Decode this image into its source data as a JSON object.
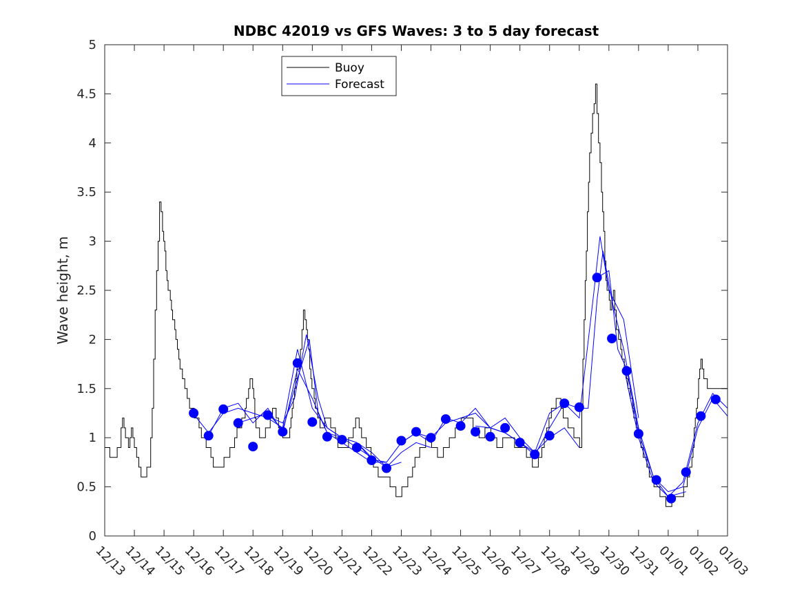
{
  "chart_data": {
    "type": "line",
    "title": "NDBC 42019 vs GFS Waves: 3 to 5 day forecast",
    "xlabel": "",
    "ylabel": "Wave height, m",
    "xlim": [
      0,
      21
    ],
    "ylim": [
      0,
      5
    ],
    "x_unit": "days since 12/13",
    "xtick_labels": [
      "12/13",
      "12/14",
      "12/15",
      "12/16",
      "12/17",
      "12/18",
      "12/19",
      "12/20",
      "12/21",
      "12/22",
      "12/23",
      "12/24",
      "12/25",
      "12/26",
      "12/27",
      "12/28",
      "12/29",
      "12/30",
      "12/31",
      "01/01",
      "01/02",
      "01/03"
    ],
    "yticks": [
      0,
      0.5,
      1,
      1.5,
      2,
      2.5,
      3,
      3.5,
      4,
      4.5,
      5
    ],
    "ytick_labels": [
      "0",
      "0.5",
      "1",
      "1.5",
      "2",
      "2.5",
      "3",
      "3.5",
      "4",
      "4.5",
      "5"
    ],
    "legend": {
      "position": "top-left",
      "entries": [
        "Buoy",
        "Forecast"
      ]
    },
    "colors": {
      "buoy": "#000000",
      "forecast": "#0000ff",
      "axis": "#262626"
    },
    "series": [
      {
        "name": "Buoy",
        "color": "#000000",
        "points": [
          [
            0,
            0.9
          ],
          [
            0.3,
            0.8
          ],
          [
            0.5,
            0.9
          ],
          [
            0.6,
            1.2
          ],
          [
            0.7,
            1.0
          ],
          [
            0.8,
            0.9
          ],
          [
            0.9,
            1.1
          ],
          [
            1.0,
            0.9
          ],
          [
            1.15,
            0.7
          ],
          [
            1.3,
            0.6
          ],
          [
            1.5,
            0.7
          ],
          [
            1.6,
            1.3
          ],
          [
            1.7,
            2.3
          ],
          [
            1.8,
            3.0
          ],
          [
            1.85,
            3.4
          ],
          [
            1.95,
            3.1
          ],
          [
            2.1,
            2.6
          ],
          [
            2.25,
            2.3
          ],
          [
            2.4,
            2.0
          ],
          [
            2.5,
            1.8
          ],
          [
            2.7,
            1.5
          ],
          [
            2.9,
            1.3
          ],
          [
            3.1,
            1.2
          ],
          [
            3.3,
            1.0
          ],
          [
            3.5,
            0.9
          ],
          [
            3.7,
            0.7
          ],
          [
            3.9,
            0.7
          ],
          [
            4.1,
            0.8
          ],
          [
            4.3,
            0.9
          ],
          [
            4.5,
            1.1
          ],
          [
            4.7,
            1.2
          ],
          [
            4.85,
            1.5
          ],
          [
            4.95,
            1.6
          ],
          [
            5.1,
            1.1
          ],
          [
            5.3,
            1.0
          ],
          [
            5.5,
            1.1
          ],
          [
            5.7,
            1.3
          ],
          [
            5.9,
            1.1
          ],
          [
            6.0,
            1.0
          ],
          [
            6.2,
            1.0
          ],
          [
            6.4,
            1.5
          ],
          [
            6.6,
            1.9
          ],
          [
            6.7,
            2.3
          ],
          [
            6.8,
            2.1
          ],
          [
            6.95,
            1.6
          ],
          [
            7.1,
            1.3
          ],
          [
            7.3,
            1.1
          ],
          [
            7.5,
            1.2
          ],
          [
            7.7,
            1.1
          ],
          [
            7.9,
            0.9
          ],
          [
            8.1,
            0.9
          ],
          [
            8.3,
            1.0
          ],
          [
            8.5,
            1.2
          ],
          [
            8.7,
            1.0
          ],
          [
            8.9,
            0.9
          ],
          [
            9.1,
            0.7
          ],
          [
            9.3,
            0.6
          ],
          [
            9.5,
            0.6
          ],
          [
            9.7,
            0.5
          ],
          [
            9.9,
            0.4
          ],
          [
            10.1,
            0.5
          ],
          [
            10.3,
            0.6
          ],
          [
            10.5,
            0.8
          ],
          [
            10.7,
            0.9
          ],
          [
            10.9,
            1.0
          ],
          [
            11.1,
            0.9
          ],
          [
            11.3,
            0.8
          ],
          [
            11.5,
            0.9
          ],
          [
            11.7,
            1.0
          ],
          [
            11.9,
            1.1
          ],
          [
            12.1,
            1.2
          ],
          [
            12.3,
            1.2
          ],
          [
            12.5,
            1.1
          ],
          [
            12.7,
            1.0
          ],
          [
            12.9,
            1.1
          ],
          [
            13.1,
            1.0
          ],
          [
            13.3,
            0.9
          ],
          [
            13.5,
            1.0
          ],
          [
            13.7,
            1.0
          ],
          [
            13.9,
            0.9
          ],
          [
            14.1,
            0.9
          ],
          [
            14.3,
            0.8
          ],
          [
            14.5,
            0.7
          ],
          [
            14.7,
            0.8
          ],
          [
            14.9,
            1.1
          ],
          [
            15.1,
            1.3
          ],
          [
            15.3,
            1.4
          ],
          [
            15.5,
            1.2
          ],
          [
            15.7,
            1.1
          ],
          [
            15.9,
            1.0
          ],
          [
            16.05,
            0.9
          ],
          [
            16.2,
            2.6
          ],
          [
            16.35,
            3.9
          ],
          [
            16.45,
            4.3
          ],
          [
            16.55,
            4.6
          ],
          [
            16.65,
            4.0
          ],
          [
            16.75,
            3.5
          ],
          [
            16.9,
            2.6
          ],
          [
            17.05,
            2.3
          ],
          [
            17.15,
            2.5
          ],
          [
            17.25,
            2.1
          ],
          [
            17.4,
            1.9
          ],
          [
            17.6,
            1.6
          ],
          [
            17.8,
            1.3
          ],
          [
            18.0,
            1.0
          ],
          [
            18.2,
            0.8
          ],
          [
            18.4,
            0.6
          ],
          [
            18.6,
            0.5
          ],
          [
            18.8,
            0.4
          ],
          [
            19.0,
            0.3
          ],
          [
            19.2,
            0.4
          ],
          [
            19.4,
            0.4
          ],
          [
            19.6,
            0.5
          ],
          [
            19.8,
            0.8
          ],
          [
            19.95,
            1.3
          ],
          [
            20.1,
            1.8
          ],
          [
            20.2,
            1.6
          ],
          [
            20.4,
            1.5
          ],
          [
            20.6,
            1.5
          ],
          [
            21.0,
            1.5
          ]
        ]
      },
      {
        "name": "Forecast",
        "color": "#0000ff",
        "runs": [
          [
            [
              3.0,
              1.24
            ],
            [
              3.5,
              1.05
            ],
            [
              4.0,
              1.25
            ],
            [
              4.5,
              1.3
            ],
            [
              5.0,
              1.25
            ],
            [
              5.5,
              1.2
            ],
            [
              6.0,
              1.1
            ],
            [
              6.5,
              1.9
            ],
            [
              7.0,
              1.3
            ],
            [
              7.5,
              1.1
            ],
            [
              8.0,
              1.0
            ],
            [
              8.5,
              0.9
            ],
            [
              9.0,
              0.8
            ]
          ],
          [
            [
              3.5,
              1.02
            ],
            [
              4.0,
              1.3
            ],
            [
              4.5,
              1.35
            ],
            [
              5.0,
              1.15
            ],
            [
              5.5,
              1.3
            ],
            [
              6.0,
              1.05
            ],
            [
              6.5,
              1.7
            ],
            [
              7.0,
              1.4
            ],
            [
              7.5,
              1.05
            ],
            [
              8.0,
              0.95
            ],
            [
              8.5,
              0.85
            ],
            [
              9.0,
              0.75
            ],
            [
              9.5,
              0.75
            ]
          ],
          [
            [
              4.5,
              1.15
            ],
            [
              5.0,
              1.2
            ],
            [
              5.5,
              1.25
            ],
            [
              6.0,
              1.08
            ],
            [
              6.5,
              1.6
            ],
            [
              6.9,
              2.0
            ],
            [
              7.2,
              1.25
            ],
            [
              7.5,
              1.05
            ],
            [
              8.0,
              1.0
            ],
            [
              8.5,
              0.95
            ],
            [
              9.0,
              0.8
            ],
            [
              9.5,
              0.7
            ],
            [
              10.0,
              0.75
            ]
          ],
          [
            [
              5.5,
              1.22
            ],
            [
              6.0,
              1.15
            ],
            [
              6.4,
              1.4
            ],
            [
              6.8,
              2.05
            ],
            [
              7.2,
              1.4
            ],
            [
              7.5,
              1.1
            ],
            [
              8.0,
              1.0
            ],
            [
              8.5,
              0.95
            ],
            [
              9.0,
              0.85
            ],
            [
              9.5,
              0.7
            ],
            [
              10.0,
              0.85
            ],
            [
              10.5,
              0.95
            ],
            [
              11.0,
              0.9
            ]
          ],
          [
            [
              8.5,
              0.95
            ],
            [
              9.0,
              0.78
            ],
            [
              9.5,
              0.75
            ],
            [
              10.0,
              0.95
            ],
            [
              10.5,
              1.05
            ],
            [
              11.0,
              1.0
            ],
            [
              11.5,
              1.15
            ],
            [
              12.0,
              1.2
            ],
            [
              12.5,
              1.25
            ],
            [
              13.0,
              1.1
            ],
            [
              13.5,
              1.05
            ],
            [
              14.0,
              0.95
            ],
            [
              14.4,
              0.85
            ]
          ],
          [
            [
              10.0,
              0.95
            ],
            [
              10.5,
              1.05
            ],
            [
              11.0,
              0.95
            ],
            [
              11.5,
              1.2
            ],
            [
              12.0,
              1.15
            ],
            [
              12.5,
              1.3
            ],
            [
              13.0,
              1.1
            ],
            [
              13.5,
              1.05
            ],
            [
              14.0,
              0.95
            ],
            [
              14.5,
              0.85
            ],
            [
              15.0,
              1.0
            ],
            [
              15.5,
              1.1
            ],
            [
              16.0,
              0.9
            ]
          ],
          [
            [
              12.5,
              1.12
            ],
            [
              13.0,
              1.1
            ],
            [
              13.5,
              1.2
            ],
            [
              14.0,
              1.0
            ],
            [
              14.5,
              0.85
            ],
            [
              15.0,
              1.25
            ],
            [
              15.5,
              1.35
            ],
            [
              16.0,
              1.2
            ],
            [
              16.5,
              2.5
            ],
            [
              16.7,
              3.05
            ],
            [
              17.0,
              2.5
            ],
            [
              17.5,
              2.2
            ],
            [
              18.0,
              1.2
            ]
          ],
          [
            [
              14.5,
              0.82
            ],
            [
              15.0,
              1.1
            ],
            [
              15.5,
              1.35
            ],
            [
              16.0,
              1.3
            ],
            [
              16.3,
              1.3
            ],
            [
              16.6,
              2.4
            ],
            [
              16.8,
              2.9
            ],
            [
              17.1,
              2.4
            ],
            [
              17.5,
              1.9
            ],
            [
              18.0,
              1.1
            ],
            [
              18.5,
              0.6
            ],
            [
              19.0,
              0.4
            ],
            [
              19.6,
              0.45
            ]
          ],
          [
            [
              16.6,
              2.63
            ],
            [
              17.0,
              2.7
            ],
            [
              17.3,
              1.9
            ],
            [
              17.6,
              1.7
            ],
            [
              18.0,
              1.05
            ],
            [
              18.5,
              0.6
            ],
            [
              19.0,
              0.45
            ],
            [
              19.5,
              0.5
            ],
            [
              20.0,
              1.1
            ],
            [
              20.5,
              1.4
            ],
            [
              21.0,
              1.22
            ]
          ],
          [
            [
              17.5,
              1.72
            ],
            [
              18.0,
              1.0
            ],
            [
              18.5,
              0.55
            ],
            [
              19.0,
              0.4
            ],
            [
              19.5,
              0.55
            ],
            [
              20.0,
              1.15
            ],
            [
              20.5,
              1.45
            ],
            [
              21.0,
              1.3
            ]
          ]
        ],
        "markers": [
          [
            3.0,
            1.25
          ],
          [
            3.5,
            1.02
          ],
          [
            4.0,
            1.29
          ],
          [
            4.5,
            1.15
          ],
          [
            5.0,
            0.91
          ],
          [
            5.5,
            1.23
          ],
          [
            6.0,
            1.06
          ],
          [
            6.5,
            1.76
          ],
          [
            7.0,
            1.16
          ],
          [
            7.5,
            1.01
          ],
          [
            8.0,
            0.98
          ],
          [
            8.5,
            0.9
          ],
          [
            9.0,
            0.77
          ],
          [
            9.5,
            0.69
          ],
          [
            10.0,
            0.97
          ],
          [
            10.5,
            1.06
          ],
          [
            11.0,
            1.0
          ],
          [
            11.5,
            1.19
          ],
          [
            12.0,
            1.12
          ],
          [
            12.5,
            1.06
          ],
          [
            13.0,
            1.01
          ],
          [
            13.5,
            1.1
          ],
          [
            14.0,
            0.95
          ],
          [
            14.5,
            0.83
          ],
          [
            15.0,
            1.02
          ],
          [
            15.5,
            1.35
          ],
          [
            16.0,
            1.31
          ],
          [
            16.6,
            2.63
          ],
          [
            17.1,
            2.01
          ],
          [
            17.6,
            1.68
          ],
          [
            18.0,
            1.04
          ],
          [
            18.6,
            0.57
          ],
          [
            19.1,
            0.38
          ],
          [
            19.6,
            0.65
          ],
          [
            20.1,
            1.22
          ],
          [
            20.6,
            1.39
          ]
        ]
      }
    ]
  }
}
